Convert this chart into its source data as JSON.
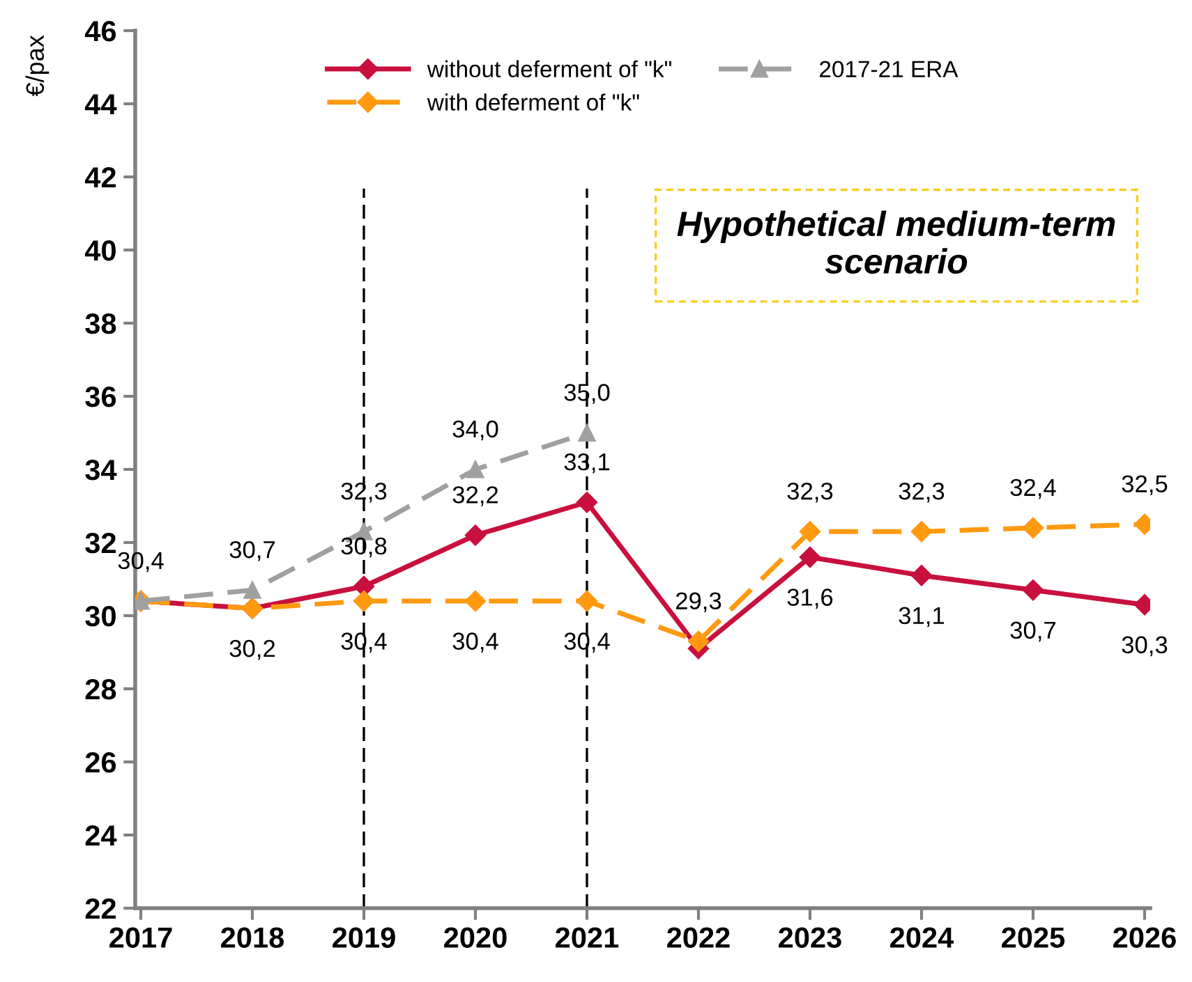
{
  "chart_data": {
    "type": "line",
    "ylabel": "€/pax",
    "categories": [
      "2017",
      "2018",
      "2019",
      "2020",
      "2021",
      "2022",
      "2023",
      "2024",
      "2025",
      "2026"
    ],
    "series": [
      {
        "name": "without deferment of \"k\"",
        "color": "#c8103e",
        "marker": "diamond",
        "line_style": "solid",
        "values": [
          30.4,
          30.2,
          30.8,
          32.2,
          33.1,
          29.1,
          31.6,
          31.1,
          30.7,
          30.3
        ],
        "value_labels": [
          null,
          null,
          "30,8",
          "32,2",
          "33,1",
          null,
          "31,6",
          "31,1",
          "30,7",
          "30,3"
        ]
      },
      {
        "name": "with deferment of \"k\"",
        "color": "#ff9a10",
        "marker": "diamond",
        "line_style": "dashed",
        "values": [
          30.4,
          30.2,
          30.4,
          30.4,
          30.4,
          29.3,
          32.3,
          32.3,
          32.4,
          32.5
        ],
        "value_labels": [
          null,
          "30,2",
          "30,4",
          "30,4",
          "30,4",
          "29,3",
          "32,3",
          "32,3",
          "32,4",
          "32,5"
        ]
      },
      {
        "name": "2017-21 ERA",
        "color": "#a0a0a0",
        "marker": "triangle",
        "line_style": "dashed",
        "values": [
          30.4,
          30.7,
          32.3,
          34.0,
          35.0,
          null,
          null,
          null,
          null,
          null
        ],
        "value_labels": [
          "30,4",
          "30,7",
          "32,3",
          "34,0",
          "35,0",
          null,
          null,
          null,
          null,
          null
        ]
      }
    ],
    "ylim": [
      22,
      46
    ],
    "yticks": [
      22,
      24,
      26,
      28,
      30,
      32,
      34,
      36,
      38,
      40,
      42,
      44,
      46
    ],
    "ref_lines": [
      {
        "axis": "x",
        "value": "2019",
        "color": "#000000",
        "line_style": "dashed"
      },
      {
        "axis": "x",
        "value": "2021",
        "color": "#000000",
        "line_style": "dashed"
      }
    ],
    "annotations": [
      "Hypothetical medium-term scenario"
    ],
    "grid": false,
    "legend": "top"
  }
}
